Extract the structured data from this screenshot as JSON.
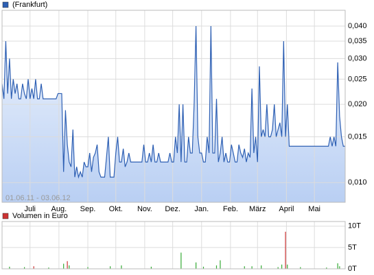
{
  "chart_data": [
    {
      "type": "line",
      "legend": "(Frankfurt)",
      "color": "#2d5fb3",
      "range_label": "01.06.11 - 03.06.12",
      "log_scale": true,
      "grid": true,
      "fill": true,
      "values": [
        0.024,
        0.021,
        0.035,
        0.022,
        0.03,
        0.021,
        0.025,
        0.022,
        0.024,
        0.021,
        0.021,
        0.024,
        0.022,
        0.021,
        0.025,
        0.021,
        0.023,
        0.021,
        0.025,
        0.021,
        0.021,
        0.024,
        0.021,
        0.021,
        0.021,
        0.021,
        0.021,
        0.021,
        0.021,
        0.021,
        0.022,
        0.022,
        0.022,
        0.011,
        0.019,
        0.014,
        0.012,
        0.0115,
        0.016,
        0.0105,
        0.0115,
        0.0105,
        0.011,
        0.0105,
        0.012,
        0.0115,
        0.0115,
        0.013,
        0.011,
        0.0125,
        0.013,
        0.014,
        0.011,
        0.0105,
        0.0105,
        0.0105,
        0.0125,
        0.015,
        0.0105,
        0.0105,
        0.0105,
        0.013,
        0.015,
        0.012,
        0.012,
        0.0135,
        0.0115,
        0.012,
        0.013,
        0.012,
        0.012,
        0.012,
        0.012,
        0.012,
        0.012,
        0.012,
        0.014,
        0.012,
        0.012,
        0.013,
        0.012,
        0.014,
        0.012,
        0.012,
        0.013,
        0.012,
        0.012,
        0.012,
        0.012,
        0.012,
        0.013,
        0.012,
        0.012,
        0.015,
        0.013,
        0.02,
        0.012,
        0.02,
        0.012,
        0.012,
        0.015,
        0.013,
        0.013,
        0.02,
        0.04,
        0.015,
        0.013,
        0.013,
        0.012,
        0.012,
        0.015,
        0.013,
        0.04,
        0.013,
        0.013,
        0.021,
        0.012,
        0.013,
        0.015,
        0.012,
        0.013,
        0.012,
        0.012,
        0.014,
        0.013,
        0.012,
        0.012,
        0.014,
        0.013,
        0.0125,
        0.0135,
        0.012,
        0.013,
        0.0125,
        0.023,
        0.013,
        0.015,
        0.012,
        0.028,
        0.015,
        0.016,
        0.015,
        0.02,
        0.015,
        0.015,
        0.016,
        0.02,
        0.015,
        0.016,
        0.017,
        0.015,
        0.035,
        0.015,
        0.02,
        0.0138,
        0.0138,
        0.0138,
        0.0138,
        0.0138,
        0.0138,
        0.0138,
        0.0138,
        0.0138,
        0.0138,
        0.0138,
        0.0138,
        0.0138,
        0.0138,
        0.0138,
        0.0138,
        0.0138,
        0.0138,
        0.0138,
        0.0138,
        0.0138,
        0.0138,
        0.015,
        0.0138,
        0.015,
        0.0138,
        0.029,
        0.018,
        0.015,
        0.0138,
        0.0138
      ],
      "xlim": [
        0,
        184
      ],
      "xticks": [
        {
          "value": 15,
          "label": "Juli"
        },
        {
          "value": 30.5,
          "label": "Aug."
        },
        {
          "value": 46,
          "label": "Sep."
        },
        {
          "value": 61,
          "label": "Okt."
        },
        {
          "value": 76.5,
          "label": "Nov."
        },
        {
          "value": 91.5,
          "label": "Dez."
        },
        {
          "value": 107,
          "label": "Jan."
        },
        {
          "value": 122.5,
          "label": "Feb."
        },
        {
          "value": 137,
          "label": "März"
        },
        {
          "value": 152.5,
          "label": "April"
        },
        {
          "value": 167.5,
          "label": "Mai"
        }
      ],
      "ylim": [
        0.0084,
        0.046
      ],
      "yticks": [
        {
          "value": 0.01,
          "label": "0,010"
        },
        {
          "value": 0.015,
          "label": "0,015"
        },
        {
          "value": 0.02,
          "label": "0,020"
        },
        {
          "value": 0.025,
          "label": "0,025"
        },
        {
          "value": 0.03,
          "label": "0,030"
        },
        {
          "value": 0.035,
          "label": "0,035"
        },
        {
          "value": 0.04,
          "label": "0,040"
        }
      ]
    },
    {
      "type": "bar",
      "legend": "Volumen in Euro",
      "legend_color": "#cc3333",
      "grid": true,
      "x": [
        4,
        12,
        17,
        25,
        33,
        35,
        36,
        46,
        58,
        64,
        80,
        96,
        104,
        108,
        115,
        117,
        130,
        134,
        139,
        148,
        150,
        152,
        153,
        160,
        174,
        180,
        181
      ],
      "values": [
        0.5,
        0.4,
        0.6,
        0.3,
        1.2,
        1.8,
        0.8,
        0.4,
        0.6,
        0.8,
        0.5,
        3.8,
        1.5,
        0.5,
        0.8,
        2.0,
        0.6,
        0.6,
        0.8,
        0.4,
        1.0,
        8.7,
        1.0,
        0.4,
        0.3,
        1.3,
        0.6
      ],
      "colors": [
        "#33aa33",
        "#33aa33",
        "#cc3333",
        "#33aa33",
        "#33aa33",
        "#cc3333",
        "#33aa33",
        "#33aa33",
        "#33aa33",
        "#33aa33",
        "#33aa33",
        "#33aa33",
        "#33aa33",
        "#33aa33",
        "#33aa33",
        "#33aa33",
        "#33aa33",
        "#33aa33",
        "#33aa33",
        "#33aa33",
        "#33aa33",
        "#cc3333",
        "#33aa33",
        "#33aa33",
        "#33aa33",
        "#33aa33",
        "#33aa33"
      ],
      "xlim": [
        0,
        184
      ],
      "xticks": [
        {
          "value": 15,
          "label": "Juli"
        },
        {
          "value": 30.5,
          "label": "Aug."
        },
        {
          "value": 46,
          "label": "Sep."
        },
        {
          "value": 61,
          "label": "Okt."
        },
        {
          "value": 76.5,
          "label": "Nov."
        },
        {
          "value": 91.5,
          "label": "Dez."
        },
        {
          "value": 107,
          "label": "Jan."
        },
        {
          "value": 122.5,
          "label": "Feb."
        },
        {
          "value": 137,
          "label": "März"
        },
        {
          "value": 152.5,
          "label": "April"
        },
        {
          "value": 167.5,
          "label": "Mai"
        }
      ],
      "ylim": [
        0,
        11.1
      ],
      "yticks": [
        {
          "value": 0,
          "label": "0T"
        },
        {
          "value": 5,
          "label": "5T"
        },
        {
          "value": 10,
          "label": "10T"
        }
      ]
    }
  ]
}
